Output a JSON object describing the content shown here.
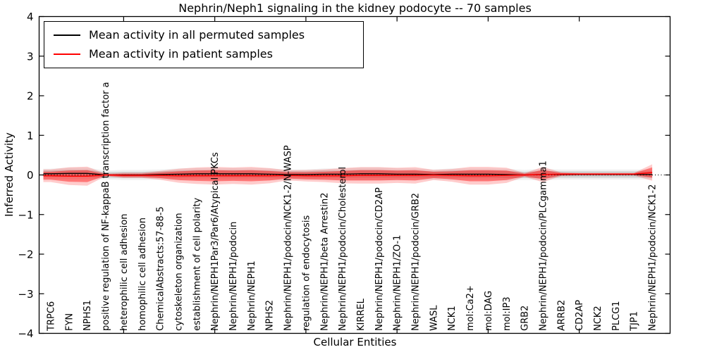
{
  "figure": {
    "title": "Nephrin/Neph1 signaling in the kidney podocyte -- 70 samples",
    "xlabel": "Cellular Entities",
    "ylabel": "Inferred Activity"
  },
  "legend": {
    "items": [
      {
        "label": "Mean activity in all permuted samples",
        "color": "#000000"
      },
      {
        "label": "Mean activity in patient samples",
        "color": "#ff0000"
      }
    ]
  },
  "chart_data": {
    "type": "line",
    "title": "Nephrin/Neph1 signaling in the kidney podocyte -- 70 samples",
    "xlabel": "Cellular Entities",
    "ylabel": "Inferred Activity",
    "ylim": [
      -4,
      4
    ],
    "yticks": [
      -4,
      -3,
      -2,
      -1,
      0,
      1,
      2,
      3,
      4
    ],
    "xtick_index_positions": [
      4,
      9,
      14,
      19,
      24,
      29
    ],
    "grid": false,
    "zero_line_dotted": true,
    "legend_position": "upper left",
    "categories": [
      "TRPC6",
      "FYN",
      "NPHS1",
      "positive regulation of NF-kappaB transcription factor a",
      "heterophilic cell adhesion",
      "homophilic cell adhesion",
      "ChemicalAbstracts:57-88-5",
      "cytoskeleton organization",
      "establishment of cell polarity",
      "Nephrin/NEPH1Par3/Par6/Atypical PKCs",
      "Nephrin/NEPH1/podocin",
      "Nephrin/NEPH1",
      "NPHS2",
      "Nephrin/NEPH1/podocin/NCK1-2/N-WASP",
      "regulation of endocytosis",
      "Nephrin/NEPH1/beta Arrestin2",
      "Nephrin/NEPH1/podocin/Cholesterol",
      "KIRREL",
      "Nephrin/NEPH1/podocin/CD2AP",
      "Nephrin/NEPH1/ZO-1",
      "Nephrin/NEPH1/podocin/GRB2",
      "WASL",
      "NCK1",
      "mol:Ca2+",
      "mol:DAG",
      "mol:IP3",
      "GRB2",
      "Nephrin/NEPH1/podocin/PLCgamma1",
      "ARRB2",
      "CD2AP",
      "NCK2",
      "PLCG1",
      "TJP1",
      "Nephrin/NEPH1/podocin/NCK1-2"
    ],
    "series": [
      {
        "name": "Mean activity in all permuted samples",
        "color": "#000000",
        "mean": [
          0.03,
          0.04,
          0.04,
          0.0,
          0.0,
          0.0,
          0.01,
          0.02,
          0.03,
          0.03,
          0.03,
          0.03,
          0.02,
          0.01,
          0.01,
          0.02,
          0.02,
          0.03,
          0.03,
          0.02,
          0.02,
          0.01,
          0.02,
          0.02,
          0.02,
          0.01,
          0.0,
          0.01,
          0.01,
          0.01,
          0.01,
          0.01,
          0.01,
          0.01
        ],
        "std": [
          0.08,
          0.09,
          0.09,
          0.07,
          0.08,
          0.08,
          0.08,
          0.09,
          0.09,
          0.09,
          0.09,
          0.09,
          0.09,
          0.08,
          0.08,
          0.09,
          0.09,
          0.1,
          0.1,
          0.09,
          0.09,
          0.08,
          0.09,
          0.09,
          0.09,
          0.09,
          0.08,
          0.09,
          0.08,
          0.08,
          0.08,
          0.08,
          0.08,
          0.08
        ]
      },
      {
        "name": "Mean activity in patient samples",
        "color": "#ff0000",
        "mean": [
          -0.02,
          -0.03,
          -0.03,
          0.0,
          -0.01,
          -0.01,
          -0.01,
          -0.02,
          -0.02,
          -0.02,
          -0.02,
          -0.02,
          -0.02,
          -0.01,
          -0.02,
          -0.02,
          -0.02,
          -0.01,
          -0.01,
          -0.01,
          -0.01,
          0.0,
          -0.01,
          -0.02,
          -0.02,
          -0.01,
          0.0,
          0.01,
          0.02,
          0.02,
          0.02,
          0.02,
          0.02,
          0.06
        ],
        "std": [
          0.1,
          0.14,
          0.15,
          0.02,
          0.04,
          0.04,
          0.07,
          0.11,
          0.13,
          0.14,
          0.13,
          0.14,
          0.12,
          0.08,
          0.09,
          0.1,
          0.12,
          0.13,
          0.13,
          0.12,
          0.13,
          0.08,
          0.1,
          0.14,
          0.14,
          0.12,
          0.03,
          0.12,
          0.03,
          0.02,
          0.02,
          0.02,
          0.02,
          0.13
        ]
      }
    ]
  }
}
